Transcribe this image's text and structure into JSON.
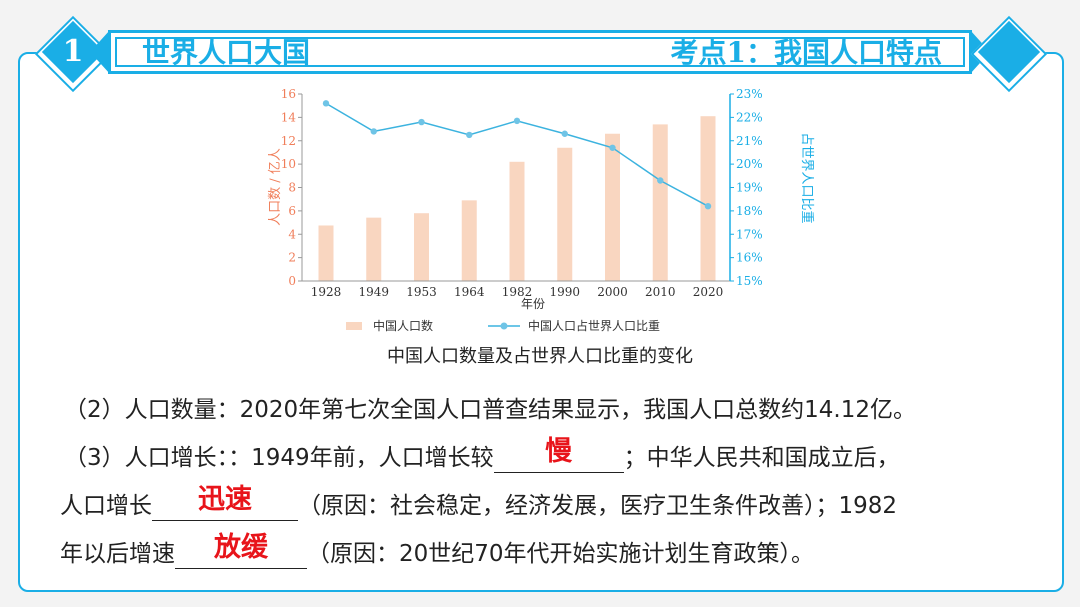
{
  "header": {
    "number": "1",
    "section_title": "世界人口大国",
    "topic_title": "考点1：我国人口特点"
  },
  "chart_data": {
    "type": "bar+line",
    "categories": [
      "1928",
      "1949",
      "1953",
      "1964",
      "1982",
      "1990",
      "2000",
      "2010",
      "2020"
    ],
    "xlabel": "年份",
    "ylabel_left": "人口数 / 亿人",
    "ylabel_right": "占世界人口比重",
    "ylim_left": [
      0,
      16
    ],
    "yticks_left": [
      "0",
      "2",
      "4",
      "6",
      "8",
      "10",
      "12",
      "14",
      "16"
    ],
    "ylim_right": [
      15,
      23
    ],
    "yticks_right": [
      "15%",
      "16%",
      "17%",
      "18%",
      "19%",
      "20%",
      "21%",
      "22%",
      "23%"
    ],
    "series": [
      {
        "name": "中国人口数",
        "type": "bar",
        "axis": "left",
        "values": [
          4.75,
          5.42,
          5.8,
          6.9,
          10.2,
          11.4,
          12.6,
          13.4,
          14.1
        ],
        "color": "#f9d6c0"
      },
      {
        "name": "中国人口占世界人口比重",
        "type": "line",
        "axis": "right",
        "values": [
          22.6,
          21.4,
          21.8,
          21.25,
          21.85,
          21.3,
          20.7,
          19.3,
          18.2
        ],
        "color": "#3cb3df"
      }
    ],
    "legend": "bottom",
    "left_axis_color": "#f07e5a",
    "right_axis_color": "#1aaee6"
  },
  "caption": "中国人口数量及占世界人口比重的变化",
  "text": {
    "line1": "（2）人口数量：2020年第七次全国人口普查结果显示，我国人口总数约14.12亿。",
    "line2_a": "（3）人口增长：：1949年前，人口增长较",
    "line2_ans": "慢",
    "line2_b": "；中华人民共和国成立后，",
    "line3_a": "人口增长",
    "line3_ans": "迅速",
    "line3_b": "（原因：社会稳定，经济发展，医疗卫生条件改善）；1982",
    "line4_a": "年以后增速",
    "line4_ans": "放缓",
    "line4_b": "（原因：20世纪70年代开始实施计划生育政策）。"
  }
}
